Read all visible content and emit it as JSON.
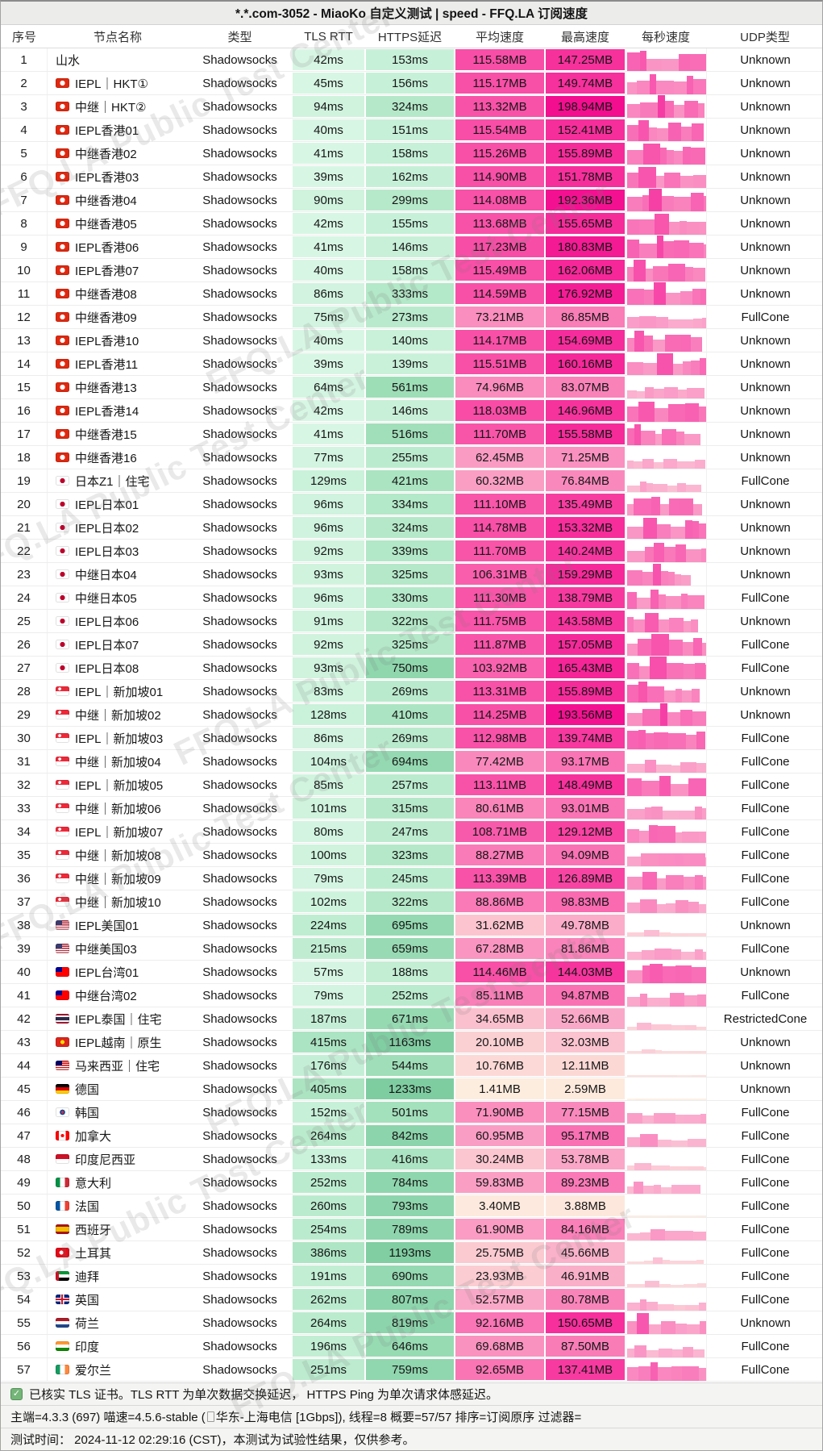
{
  "title": "*.*.com-3052 - MiaoKo 自定义测试 | speed - FFQ.LA 订阅速度",
  "watermark": "FFQ.LA Public Test Center",
  "columns": [
    "序号",
    "节点名称",
    "类型",
    "TLS RTT",
    "HTTPS延迟",
    "平均速度",
    "最高速度",
    "每秒速度",
    "UDP类型"
  ],
  "type_label": "Shadowsocks",
  "units": {
    "latency": "ms",
    "speed": "MB"
  },
  "colors": {
    "latency_scale_low": "#d8f6e4",
    "latency_scale_high": "#7ecda1",
    "speed_scale_low": "#fdf0e0",
    "speed_scale_high": "#f30c8f",
    "titlebar_bg": "#ececeb",
    "footer_bg": "#f4f4f2",
    "check_green": "#74b578"
  },
  "row_fields": [
    "index",
    "flag",
    "name",
    "tls_rtt_ms",
    "https_ms",
    "avg_mb",
    "max_mb",
    "udp_type"
  ],
  "rows": [
    [
      1,
      "",
      "山水",
      42,
      153,
      115.58,
      147.25,
      "Unknown"
    ],
    [
      2,
      "hk",
      "IEPL｜HKT①",
      45,
      156,
      115.17,
      149.74,
      "Unknown"
    ],
    [
      3,
      "hk",
      "中继｜HKT②",
      94,
      324,
      113.32,
      198.94,
      "Unknown"
    ],
    [
      4,
      "hk",
      "IEPL香港01",
      40,
      151,
      115.54,
      152.41,
      "Unknown"
    ],
    [
      5,
      "hk",
      "中继香港02",
      41,
      158,
      115.26,
      155.89,
      "Unknown"
    ],
    [
      6,
      "hk",
      "IEPL香港03",
      39,
      162,
      114.9,
      151.78,
      "Unknown"
    ],
    [
      7,
      "hk",
      "中继香港04",
      90,
      299,
      114.08,
      192.36,
      "Unknown"
    ],
    [
      8,
      "hk",
      "中继香港05",
      42,
      155,
      113.68,
      155.65,
      "Unknown"
    ],
    [
      9,
      "hk",
      "IEPL香港06",
      41,
      146,
      117.23,
      180.83,
      "Unknown"
    ],
    [
      10,
      "hk",
      "IEPL香港07",
      40,
      158,
      115.49,
      162.06,
      "Unknown"
    ],
    [
      11,
      "hk",
      "中继香港08",
      86,
      333,
      114.59,
      176.92,
      "Unknown"
    ],
    [
      12,
      "hk",
      "中继香港09",
      75,
      273,
      73.21,
      86.85,
      "FullCone"
    ],
    [
      13,
      "hk",
      "IEPL香港10",
      40,
      140,
      114.17,
      154.69,
      "Unknown"
    ],
    [
      14,
      "hk",
      "IEPL香港11",
      39,
      139,
      115.51,
      160.16,
      "Unknown"
    ],
    [
      15,
      "hk",
      "中继香港13",
      64,
      561,
      74.96,
      83.07,
      "Unknown"
    ],
    [
      16,
      "hk",
      "IEPL香港14",
      42,
      146,
      118.03,
      146.96,
      "Unknown"
    ],
    [
      17,
      "hk",
      "中继香港15",
      41,
      516,
      111.7,
      155.58,
      "Unknown"
    ],
    [
      18,
      "hk",
      "中继香港16",
      77,
      255,
      62.45,
      71.25,
      "Unknown"
    ],
    [
      19,
      "jp",
      "日本Z1｜住宅",
      129,
      421,
      60.32,
      76.84,
      "FullCone"
    ],
    [
      20,
      "jp",
      "IEPL日本01",
      96,
      334,
      111.1,
      135.49,
      "Unknown"
    ],
    [
      21,
      "jp",
      "IEPL日本02",
      96,
      324,
      114.78,
      153.32,
      "Unknown"
    ],
    [
      22,
      "jp",
      "IEPL日本03",
      92,
      339,
      111.7,
      140.24,
      "Unknown"
    ],
    [
      23,
      "jp",
      "中继日本04",
      93,
      325,
      106.31,
      159.29,
      "Unknown"
    ],
    [
      24,
      "jp",
      "中继日本05",
      96,
      330,
      111.3,
      138.79,
      "FullCone"
    ],
    [
      25,
      "jp",
      "IEPL日本06",
      91,
      322,
      111.75,
      143.58,
      "Unknown"
    ],
    [
      26,
      "jp",
      "IEPL日本07",
      92,
      325,
      111.87,
      157.05,
      "FullCone"
    ],
    [
      27,
      "jp",
      "IEPL日本08",
      93,
      750,
      103.92,
      165.43,
      "FullCone"
    ],
    [
      28,
      "sg",
      "IEPL｜新加坡01",
      83,
      269,
      113.31,
      155.89,
      "Unknown"
    ],
    [
      29,
      "sg",
      "中继｜新加坡02",
      128,
      410,
      114.25,
      193.56,
      "Unknown"
    ],
    [
      30,
      "sg",
      "IEPL｜新加坡03",
      86,
      269,
      112.98,
      139.74,
      "FullCone"
    ],
    [
      31,
      "sg",
      "中继｜新加坡04",
      104,
      694,
      77.42,
      93.17,
      "FullCone"
    ],
    [
      32,
      "sg",
      "IEPL｜新加坡05",
      85,
      257,
      113.11,
      148.49,
      "FullCone"
    ],
    [
      33,
      "sg",
      "中继｜新加坡06",
      101,
      315,
      80.61,
      93.01,
      "FullCone"
    ],
    [
      34,
      "sg",
      "IEPL｜新加坡07",
      80,
      247,
      108.71,
      129.12,
      "FullCone"
    ],
    [
      35,
      "sg",
      "中继｜新加坡08",
      100,
      323,
      88.27,
      94.09,
      "FullCone"
    ],
    [
      36,
      "sg",
      "中继｜新加坡09",
      79,
      245,
      113.39,
      126.89,
      "FullCone"
    ],
    [
      37,
      "sg",
      "中继｜新加坡10",
      102,
      322,
      88.86,
      98.83,
      "FullCone"
    ],
    [
      38,
      "us",
      "IEPL美国01",
      224,
      695,
      31.62,
      49.78,
      "Unknown"
    ],
    [
      39,
      "us",
      "中继美国03",
      215,
      659,
      67.28,
      81.86,
      "FullCone"
    ],
    [
      40,
      "tw",
      "IEPL台湾01",
      57,
      188,
      114.46,
      144.03,
      "Unknown"
    ],
    [
      41,
      "tw",
      "中继台湾02",
      79,
      252,
      85.11,
      94.87,
      "FullCone"
    ],
    [
      42,
      "th",
      "IEPL泰国｜住宅",
      187,
      671,
      34.65,
      52.66,
      "RestrictedCone"
    ],
    [
      43,
      "vn",
      "IEPL越南｜原生",
      415,
      1163,
      20.1,
      32.03,
      "Unknown"
    ],
    [
      44,
      "my",
      "马来西亚｜住宅",
      176,
      544,
      10.76,
      12.11,
      "Unknown"
    ],
    [
      45,
      "de",
      "德国",
      405,
      1233,
      1.41,
      2.59,
      "Unknown"
    ],
    [
      46,
      "kr",
      "韩国",
      152,
      501,
      71.9,
      77.15,
      "FullCone"
    ],
    [
      47,
      "ca",
      "加拿大",
      264,
      842,
      60.95,
      95.17,
      "FullCone"
    ],
    [
      48,
      "id",
      "印度尼西亚",
      133,
      416,
      30.24,
      53.78,
      "FullCone"
    ],
    [
      49,
      "it",
      "意大利",
      252,
      784,
      59.83,
      89.23,
      "FullCone"
    ],
    [
      50,
      "fr",
      "法国",
      260,
      793,
      3.4,
      3.88,
      "FullCone"
    ],
    [
      51,
      "es",
      "西班牙",
      254,
      789,
      61.9,
      84.16,
      "FullCone"
    ],
    [
      52,
      "tr",
      "土耳其",
      386,
      1193,
      25.75,
      45.66,
      "FullCone"
    ],
    [
      53,
      "ae",
      "迪拜",
      191,
      690,
      23.93,
      46.91,
      "FullCone"
    ],
    [
      54,
      "gb",
      "英国",
      262,
      807,
      52.57,
      80.78,
      "FullCone"
    ],
    [
      55,
      "nl",
      "荷兰",
      264,
      819,
      92.16,
      150.65,
      "Unknown"
    ],
    [
      56,
      "in",
      "印度",
      196,
      646,
      69.68,
      87.5,
      "FullCone"
    ],
    [
      57,
      "ie",
      "爱尔兰",
      251,
      759,
      92.65,
      137.41,
      "FullCone"
    ]
  ],
  "footer": {
    "line1": "已核实 TLS 证书。TLS RTT 为单次数据交换延迟， HTTPS Ping 为单次请求体感延迟。",
    "line2a": "主端=4.3.3 (697) 喵速=4.5.6-stable (",
    "line2b": "华东-上海电信 [1Gbps]), 线程=8 概要=57/57 排序=订阅原序 过滤器=",
    "line3": "测试时间： 2024-11-12 02:29:16 (CST)，本测试为试验性结果，仅供参考。"
  }
}
